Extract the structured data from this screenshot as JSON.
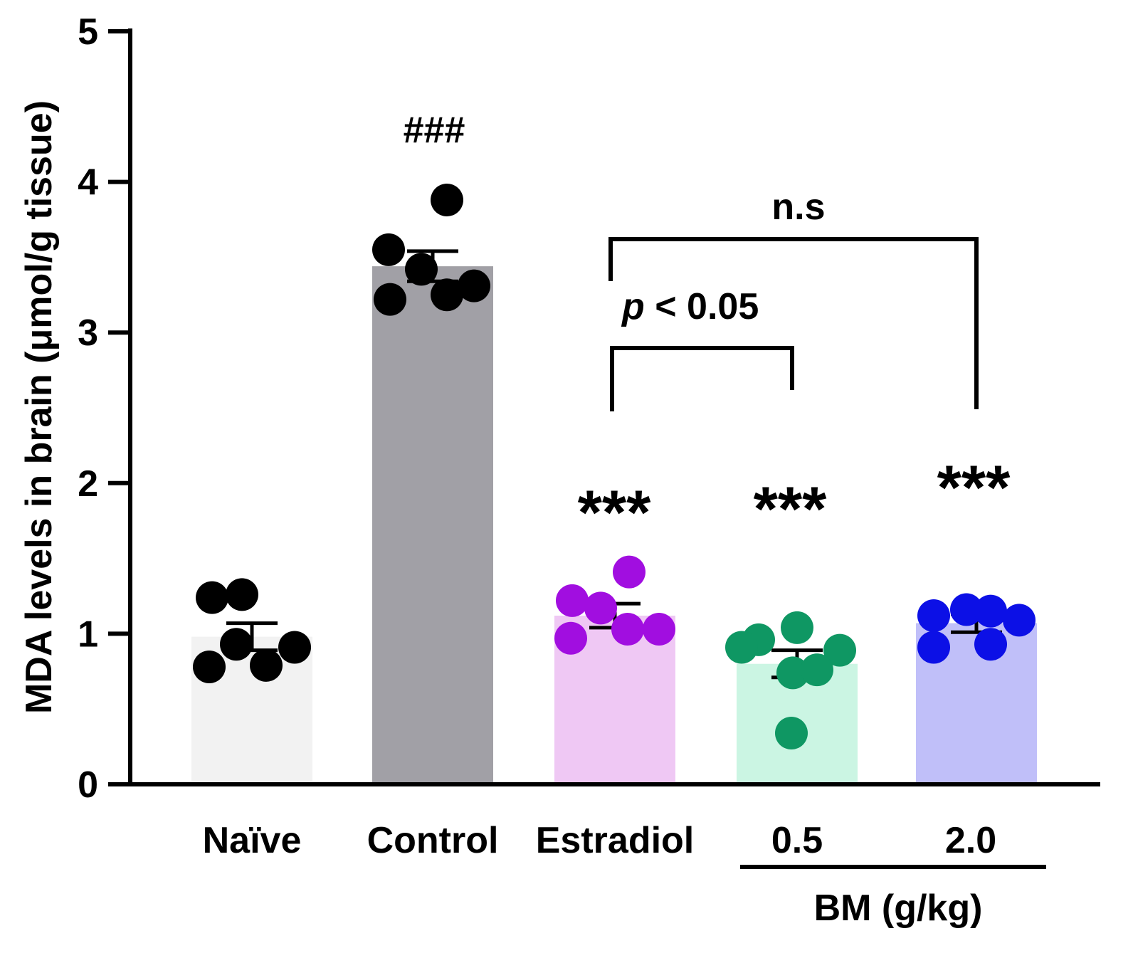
{
  "chart_data": {
    "type": "bar",
    "title": "",
    "xlabel": "",
    "ylabel": "MDA levels in brain (μmol/g tissue)",
    "ylim": [
      0,
      5
    ],
    "yticks": [
      "0",
      "1",
      "2",
      "3",
      "4",
      "5"
    ],
    "grid": false,
    "categories": [
      "Naïve",
      "Control",
      "Estradiol",
      "0.5",
      "2.0"
    ],
    "group_label": "BM (g/kg)",
    "means": [
      0.98,
      3.44,
      1.12,
      0.8,
      1.07
    ],
    "sem": [
      0.09,
      0.1,
      0.08,
      0.09,
      0.06
    ],
    "bar_colors": [
      "#f2f2f2",
      "#a1a0a6",
      "#efc8f4",
      "#cbf5e3",
      "#c0bff9"
    ],
    "point_colors": [
      "#000000",
      "#000000",
      "#a10ee0",
      "#0f9763",
      "#0c10e6"
    ],
    "points": [
      [
        1.24,
        1.26,
        0.93,
        0.91,
        0.78,
        0.79
      ],
      [
        3.88,
        3.55,
        3.42,
        3.22,
        3.25,
        3.31
      ],
      [
        1.22,
        1.41,
        1.17,
        1.03,
        0.97,
        1.03
      ],
      [
        1.04,
        0.96,
        0.89,
        0.91,
        0.74,
        0.76,
        0.34
      ],
      [
        1.12,
        1.16,
        1.15,
        1.09,
        0.91,
        0.93
      ]
    ],
    "annotations": {
      "control_sig": "###",
      "estradiol_sig": "***",
      "bm05_sig": "***",
      "bm20_sig": "***",
      "bracket_upper": "n.s",
      "bracket_lower_p": "p",
      "bracket_lower_rest": " < 0.05"
    }
  }
}
